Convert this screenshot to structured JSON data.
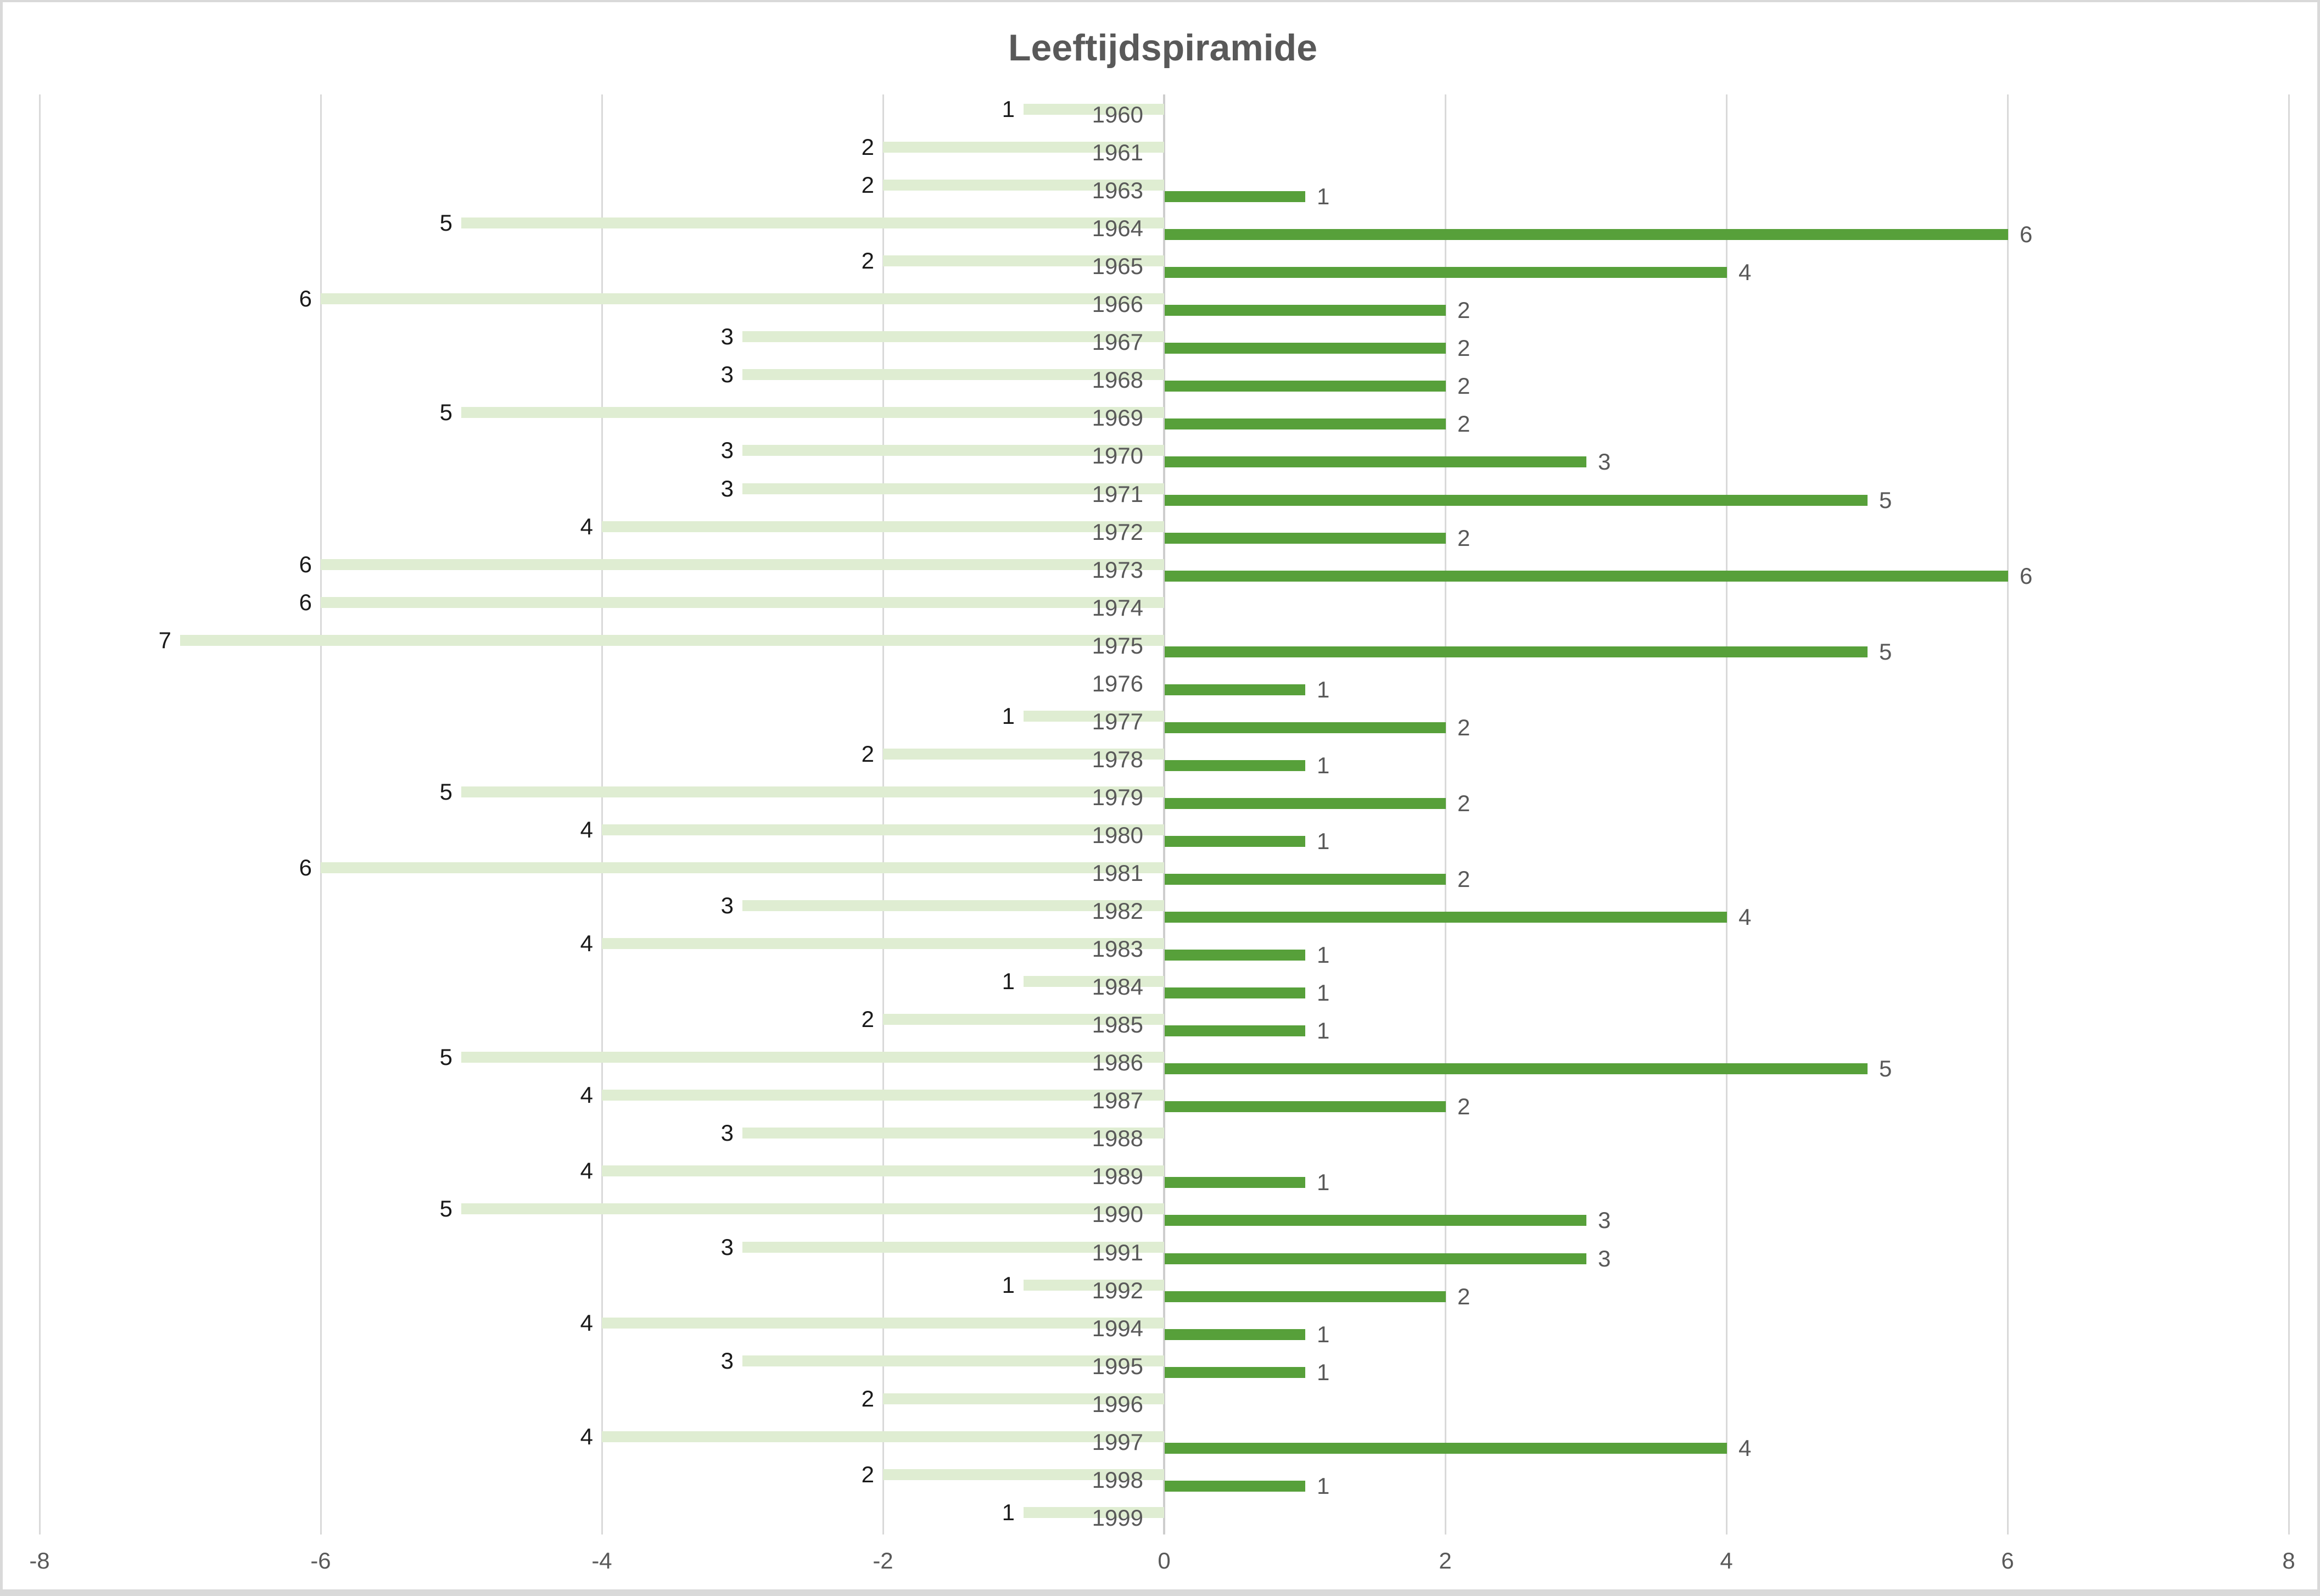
{
  "chart_data": {
    "type": "bar",
    "orientation": "horizontal",
    "title": "Leeftijdspiramide",
    "categories": [
      "1960",
      "1961",
      "1963",
      "1964",
      "1965",
      "1966",
      "1967",
      "1968",
      "1969",
      "1970",
      "1971",
      "1972",
      "1973",
      "1974",
      "1975",
      "1976",
      "1977",
      "1978",
      "1979",
      "1980",
      "1981",
      "1982",
      "1983",
      "1984",
      "1985",
      "1986",
      "1987",
      "1988",
      "1989",
      "1990",
      "1991",
      "1992",
      "1994",
      "1995",
      "1996",
      "1997",
      "1998",
      "1999"
    ],
    "series": [
      {
        "side": "left",
        "values": [
          1,
          2,
          2,
          5,
          2,
          6,
          3,
          3,
          5,
          3,
          3,
          4,
          6,
          6,
          7,
          null,
          1,
          2,
          5,
          4,
          6,
          3,
          4,
          1,
          2,
          5,
          4,
          3,
          4,
          5,
          3,
          1,
          4,
          3,
          2,
          4,
          2,
          1
        ]
      },
      {
        "side": "right",
        "values": [
          null,
          null,
          1,
          6,
          4,
          2,
          2,
          2,
          2,
          3,
          5,
          2,
          6,
          null,
          5,
          1,
          2,
          1,
          2,
          1,
          2,
          4,
          1,
          1,
          1,
          5,
          2,
          null,
          1,
          3,
          3,
          2,
          1,
          1,
          null,
          4,
          1,
          null
        ]
      }
    ],
    "x_axis": {
      "min": -8,
      "max": 8,
      "tick_values": [
        -8,
        -6,
        -4,
        -2,
        0,
        2,
        4,
        6,
        8
      ],
      "tick_labels": [
        "-8",
        "-6",
        "-4",
        "-2",
        "0",
        "2",
        "4",
        "6",
        "8"
      ]
    },
    "grid": true,
    "legend": "none",
    "colors": {
      "left_bar": "#dfedd2",
      "right_bar": "#57a03a",
      "left_value_label": "#1a1a1a",
      "right_value_label": "#595959",
      "category_label": "#595959",
      "tick_label": "#595959",
      "title": "#595959",
      "gridline": "#d9d9d9",
      "zero_axis": "#cdcdcd",
      "frame_border": "#d9d9d9"
    }
  }
}
